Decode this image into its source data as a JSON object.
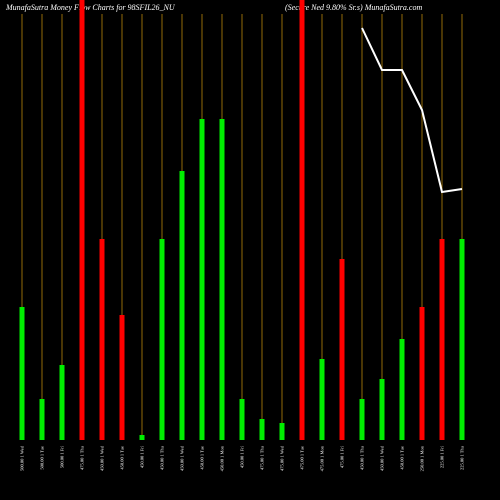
{
  "chart_data": {
    "type": "bar",
    "title": "MunafaSutra  Money Flow  Charts for 98SFIL26_NU",
    "subtitle": "(Secure  Ned 9.80% Sr.s) MunafaSutra.com",
    "categories": [
      "500.00 1 Wed",
      "500.00 1 Tue",
      "500.00 1 Fri",
      "475.00 1 Thu",
      "450.00 1 Wed",
      "450.00 1 Tue",
      "450.00 1 Fri",
      "450.00 1 Thu",
      "450.00 1 Wed",
      "450.00 1 Tue",
      "450.00 1 Mon",
      "450.00 1 Fri",
      "475.00 1 Thu",
      "475.00 1 Wed",
      "475.00 1 Tue",
      "475.00 1 Mon",
      "475.00 1 Fri",
      "450.00 1 Thu",
      "450.00 1 Wed",
      "450.00 1 Tue",
      "250.00 1 Mon",
      "225.00 1 Fri",
      "225.00 1 Thu"
    ],
    "values": [
      133,
      41,
      75,
      440,
      201,
      125,
      5,
      201,
      269,
      321,
      321,
      41,
      21,
      17,
      440,
      81,
      181,
      41,
      61,
      101,
      133,
      201,
      201
    ],
    "colors": [
      "#00ee00",
      "#00ee00",
      "#00ee00",
      "#ff0000",
      "#ff0000",
      "#ff0000",
      "#00ee00",
      "#00ee00",
      "#00ee00",
      "#00ee00",
      "#00ee00",
      "#00ee00",
      "#00ee00",
      "#00ee00",
      "#ff0000",
      "#00ee00",
      "#ff0000",
      "#00ee00",
      "#00ee00",
      "#00ee00",
      "#ff0000",
      "#ff0000",
      "#00ee00"
    ],
    "line": {
      "color": "#ffffff",
      "axis": "y2",
      "values": [
        null,
        null,
        null,
        null,
        null,
        null,
        null,
        null,
        null,
        null,
        null,
        null,
        null,
        null,
        null,
        null,
        null,
        412,
        370,
        370,
        330,
        248,
        251
      ]
    },
    "ylim": [
      0,
      440
    ],
    "y2lim": [
      0,
      440
    ],
    "guide_color": "#b8860b"
  }
}
